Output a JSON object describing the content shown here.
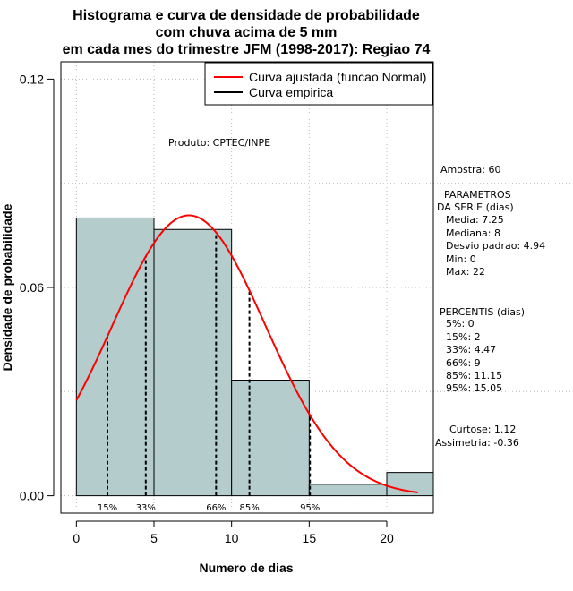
{
  "chart_data": {
    "type": "histogram",
    "title_lines": [
      "Histograma e curva de densidade de probabilidade",
      "com chuva acima de 5 mm",
      "em cada mes do trimestre JFM (1998-2017): Regiao 74"
    ],
    "xlabel": "Numero de dias",
    "ylabel": "Densidade de probabilidade",
    "xlim": [
      -1,
      23
    ],
    "ylim": [
      -0.005,
      0.125
    ],
    "x_ticks": [
      0,
      5,
      10,
      15,
      20
    ],
    "y_ticks": [
      0.0,
      0.06,
      0.12
    ],
    "y_tick_labels": [
      "0.00",
      "0.06",
      "0.12"
    ],
    "bins": [
      {
        "start": 0,
        "end": 5,
        "density": 0.08
      },
      {
        "start": 5,
        "end": 10,
        "density": 0.0767
      },
      {
        "start": 10,
        "end": 15,
        "density": 0.0333
      },
      {
        "start": 15,
        "end": 20,
        "density": 0.0033
      },
      {
        "start": 20,
        "end": 25,
        "density": 0.0067
      }
    ],
    "normal_curve": {
      "mean": 7.25,
      "sd": 4.94,
      "x_range": [
        0,
        22
      ],
      "color": "#ff0000"
    },
    "percentile_lines": [
      {
        "label": "15%",
        "x": 2
      },
      {
        "label": "33%",
        "x": 4.47
      },
      {
        "label": "66%",
        "x": 9
      },
      {
        "label": "85%",
        "x": 11.15
      },
      {
        "label": "95%",
        "x": 15.05
      }
    ],
    "legend": [
      {
        "label": "Curva ajustada (funcao Normal)",
        "color": "#ff0000"
      },
      {
        "label": "Curva empirica",
        "color": "#000000"
      }
    ],
    "product_note": "Produto: CPTEC/INPE",
    "bar_color": "#b4cccc"
  },
  "stats": {
    "sample": "Amostra: 60",
    "params_title_1": "PARAMETROS",
    "params_title_2": "DA SERIE (dias)",
    "media": "Media: 7.25",
    "mediana": "Mediana: 8",
    "desvio": "Desvio padrao: 4.94",
    "min": "Min: 0",
    "max": "Max: 22",
    "percentis_title": "PERCENTIS (dias)",
    "p5": "5%: 0",
    "p15": "15%: 2",
    "p33": "33%: 4.47",
    "p66": "66%: 9",
    "p85": "85%: 11.15",
    "p95": "95%: 15.05",
    "curtose": "Curtose: 1.12",
    "assimetria": "Assimetria: -0.36"
  }
}
